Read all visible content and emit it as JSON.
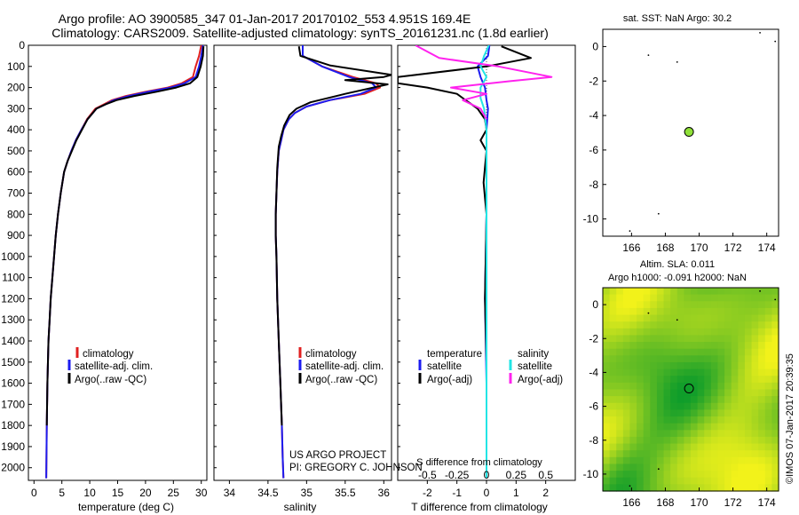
{
  "title": {
    "line1": "Argo profile: AO 3900585_347 01-Jan-2017 20170102_553 4.951S 169.4E",
    "line2": "Climatology: CARS2009. Satellite-adjusted climatology: synTS_20161231.nc (1.8d earlier)"
  },
  "credits": {
    "project": "US ARGO PROJECT",
    "pi": "PI: GREGORY C. JOHNSON",
    "stamp": "©IMOS 07-Jan-2017 20:39:35"
  },
  "colors": {
    "climatology": "#e02020",
    "satellite": "#1c1cf0",
    "argo": "#000000",
    "salinity_sat": "#22e5e5",
    "salinity_argo": "#ff22ee",
    "float_marker": "#8fe038",
    "sla_low": "#0f9d2a",
    "sla_high": "#f2f21a"
  },
  "chart_data": [
    {
      "id": "temperature",
      "type": "line",
      "xlabel": "temperature (deg C)",
      "ylabel": "",
      "xlim": [
        -1,
        31
      ],
      "ylim": [
        2060,
        0
      ],
      "xticks": [
        0,
        5,
        10,
        15,
        20,
        25,
        30
      ],
      "xticklabels": [
        "0",
        "5",
        "10",
        "15",
        "20",
        "25",
        "30"
      ],
      "yticks": [
        0,
        100,
        200,
        300,
        400,
        500,
        600,
        700,
        800,
        900,
        1000,
        1100,
        1200,
        1300,
        1400,
        1500,
        1600,
        1700,
        1800,
        1900,
        2000
      ],
      "yticklabels": [
        "0",
        "100",
        "200",
        "300",
        "400",
        "500",
        "600",
        "700",
        "800",
        "900",
        "1000",
        "1100",
        "1200",
        "1300",
        "1400",
        "1500",
        "1600",
        "1700",
        "1800",
        "1900",
        "2000"
      ],
      "legend": [
        "climatology",
        "satellite-adj. clim.",
        "Argo(..raw -QC)"
      ],
      "series": [
        {
          "name": "climatology",
          "color": "#e02020",
          "x": [
            30.0,
            29.6,
            29.0,
            28.5,
            26.5,
            24.0,
            20.0,
            16.5,
            14.0,
            12.5,
            11.0,
            9.5,
            8.5,
            7.5,
            6.7,
            6.0,
            5.4,
            4.8,
            4.3,
            3.9,
            3.6,
            3.3,
            3.0,
            2.8,
            2.6,
            2.4,
            2.3,
            2.2
          ],
          "y": [
            0,
            50,
            100,
            150,
            180,
            200,
            220,
            240,
            260,
            280,
            300,
            350,
            400,
            450,
            500,
            550,
            600,
            700,
            800,
            900,
            1000,
            1100,
            1200,
            1300,
            1400,
            1600,
            1800,
            2050
          ]
        },
        {
          "name": "satellite",
          "color": "#1c1cf0",
          "x": [
            30.3,
            30.0,
            29.6,
            29.0,
            27.0,
            24.5,
            20.5,
            17.0,
            14.3,
            12.8,
            11.2,
            9.6,
            8.5,
            7.5,
            6.7,
            6.0,
            5.4,
            4.8,
            4.3,
            3.9,
            3.6,
            3.3,
            3.0,
            2.8,
            2.6,
            2.4,
            2.3,
            2.2
          ],
          "y": [
            0,
            50,
            100,
            150,
            180,
            200,
            220,
            240,
            260,
            280,
            300,
            350,
            400,
            450,
            500,
            550,
            600,
            700,
            800,
            900,
            1000,
            1100,
            1200,
            1300,
            1400,
            1600,
            1800,
            2050
          ]
        },
        {
          "name": "Argo",
          "color": "#000000",
          "x": [
            30.4,
            30.3,
            29.9,
            29.3,
            28.0,
            25.5,
            22.0,
            18.0,
            14.8,
            12.8,
            11.2,
            9.6,
            8.6,
            7.6,
            6.8,
            6.0,
            5.4,
            4.8,
            4.3,
            3.9,
            3.6,
            3.3,
            3.0,
            2.8,
            2.6,
            2.4,
            2.3
          ],
          "y": [
            5,
            50,
            100,
            150,
            180,
            200,
            220,
            240,
            260,
            280,
            300,
            350,
            400,
            450,
            500,
            550,
            600,
            700,
            800,
            900,
            1000,
            1100,
            1200,
            1300,
            1400,
            1600,
            1800
          ]
        }
      ]
    },
    {
      "id": "salinity",
      "type": "line",
      "xlabel": "salinity",
      "xlim": [
        33.8,
        36.1
      ],
      "ylim": [
        2060,
        0
      ],
      "xticks": [
        34,
        34.5,
        35,
        35.5,
        36
      ],
      "xticklabels": [
        "34",
        "34.5",
        "35",
        "35.5",
        "36"
      ],
      "legend": [
        "climatology",
        "satellite-adj. clim.",
        "Argo(..raw -QC)"
      ],
      "series": [
        {
          "name": "climatology",
          "color": "#e02020",
          "x": [
            34.95,
            34.95,
            35.2,
            35.6,
            35.9,
            35.95,
            35.75,
            35.3,
            35.0,
            34.85,
            34.77,
            34.7,
            34.67,
            34.64,
            34.62,
            34.61,
            34.6,
            34.6,
            34.61,
            34.62,
            34.64,
            34.66,
            34.68,
            34.69,
            34.7
          ],
          "y": [
            0,
            50,
            100,
            150,
            180,
            200,
            230,
            260,
            290,
            320,
            350,
            400,
            450,
            500,
            600,
            700,
            800,
            900,
            1000,
            1200,
            1400,
            1600,
            1800,
            1950,
            2050
          ]
        },
        {
          "name": "satellite",
          "color": "#1c1cf0",
          "x": [
            34.95,
            34.95,
            35.2,
            35.55,
            35.85,
            35.9,
            35.7,
            35.3,
            35.0,
            34.85,
            34.77,
            34.7,
            34.67,
            34.64,
            34.62,
            34.61,
            34.6,
            34.6,
            34.61,
            34.62,
            34.64,
            34.66,
            34.68,
            34.69,
            34.7
          ],
          "y": [
            0,
            50,
            100,
            150,
            180,
            200,
            230,
            260,
            290,
            320,
            350,
            400,
            450,
            500,
            600,
            700,
            800,
            900,
            1000,
            1200,
            1400,
            1600,
            1800,
            1950,
            2050
          ]
        },
        {
          "name": "Argo",
          "color": "#000000",
          "x": [
            34.9,
            34.92,
            35.3,
            36.1,
            36.0,
            35.5,
            36.05,
            35.5,
            35.05,
            34.87,
            34.78,
            34.71,
            34.67,
            34.64,
            34.62,
            34.61,
            34.6,
            34.6,
            34.61,
            34.62,
            34.64,
            34.66,
            34.68
          ],
          "y": [
            5,
            50,
            95,
            140,
            150,
            165,
            185,
            230,
            270,
            300,
            330,
            380,
            430,
            480,
            580,
            700,
            800,
            900,
            1000,
            1200,
            1400,
            1600,
            1800
          ]
        }
      ]
    },
    {
      "id": "difference",
      "type": "line",
      "xlabel_salinity": "S difference from climatology",
      "xlabel_temperature": "T difference from climatology",
      "xlim": [
        -3,
        3
      ],
      "ylim": [
        2060,
        0
      ],
      "xticks": [
        -2,
        -1,
        0,
        1,
        2
      ],
      "xticklabels": [
        "-2",
        "-1",
        "0",
        "1",
        "2"
      ],
      "s_xticks": [
        -0.5,
        -0.25,
        0,
        0.25,
        0.5
      ],
      "s_xticklabels": [
        "-0.5",
        "-0.25",
        "0",
        "0.25",
        "0.5"
      ],
      "legend_temperature": {
        "title": "temperature",
        "entries": [
          "satellite",
          "Argo(-adj)"
        ]
      },
      "legend_salinity": {
        "title": "salinity",
        "entries": [
          "satellite",
          "Argo(-adj)"
        ]
      },
      "series": [
        {
          "name": "temperature satellite",
          "color": "#1c1cf0",
          "x": [
            0.1,
            0.05,
            -0.3,
            -0.2,
            -0.05,
            0,
            0.05,
            0,
            0,
            0,
            -0.05,
            0,
            0
          ],
          "y": [
            0,
            50,
            100,
            150,
            200,
            260,
            300,
            400,
            600,
            800,
            1200,
            1600,
            2050
          ]
        },
        {
          "name": "temperature Argo(-adj)",
          "color": "#000000",
          "x": [
            0.5,
            1.5,
            0.0,
            -3.0,
            -3.0,
            -2.0,
            -1.0,
            -0.8,
            -0.5,
            -0.3,
            -0.05,
            0,
            -0.2,
            0,
            -0.1,
            0,
            -0.05,
            0
          ],
          "y": [
            5,
            60,
            100,
            150,
            180,
            200,
            230,
            250,
            280,
            300,
            350,
            400,
            450,
            500,
            650,
            800,
            1200,
            1500
          ]
        },
        {
          "name": "salinity satellite",
          "color": "#22e5e5",
          "x": [
            0.02,
            -0.02,
            -0.05,
            0.0,
            -0.05,
            -0.05,
            -0.02,
            0.0,
            0.0,
            0.0,
            0.0,
            0.0,
            0.0
          ],
          "y": [
            0,
            50,
            100,
            150,
            200,
            250,
            300,
            400,
            600,
            800,
            1200,
            1600,
            2050
          ]
        },
        {
          "name": "salinity Argo(-adj)",
          "color": "#ff22ee",
          "x": [
            -0.6,
            -0.4,
            0.1,
            0.55,
            0.2,
            -0.3,
            0.0,
            -0.2,
            -0.05,
            0.0
          ],
          "y": [
            0,
            60,
            100,
            150,
            170,
            200,
            230,
            260,
            300,
            350
          ]
        }
      ]
    },
    {
      "id": "sst_map",
      "type": "scatter",
      "title": "sat. SST: NaN Argo: 30.2",
      "xlim": [
        164.3,
        174.7
      ],
      "ylim": [
        -11.0,
        1.0
      ],
      "xticks": [
        166,
        168,
        170,
        172,
        174
      ],
      "xticklabels": [
        "166",
        "168",
        "170",
        "172",
        "174"
      ],
      "yticks": [
        0,
        -2,
        -4,
        -6,
        -8,
        -10
      ],
      "yticklabels": [
        "0",
        "-2",
        "-4",
        "-6",
        "-8",
        "-10"
      ],
      "float_position": {
        "lon": 169.4,
        "lat": -4.95
      }
    },
    {
      "id": "sla_map",
      "type": "heatmap",
      "title_line1": "Altim. SLA: 0.011",
      "title_line2": "Argo h1000: -0.091 h2000: NaN",
      "xlim": [
        164.3,
        174.7
      ],
      "ylim": [
        -11.0,
        1.0
      ],
      "xticks": [
        166,
        168,
        170,
        172,
        174
      ],
      "xticklabels": [
        "166",
        "168",
        "170",
        "172",
        "174"
      ],
      "yticks": [
        0,
        -2,
        -4,
        -6,
        -8,
        -10
      ],
      "yticklabels": [
        "0",
        "-2",
        "-4",
        "-6",
        "-8",
        "-10"
      ],
      "float_position": {
        "lon": 169.4,
        "lat": -4.95
      }
    }
  ]
}
